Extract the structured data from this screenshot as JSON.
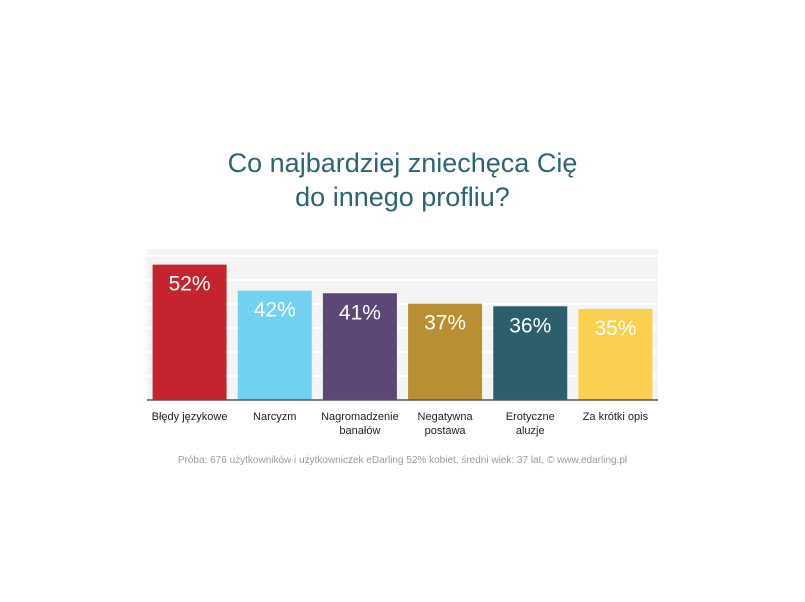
{
  "chart_data": {
    "type": "bar",
    "title_lines": [
      "Co najbardziej zniechęca Cię",
      "do innego profliu?"
    ],
    "categories": [
      [
        "Błędy językowe"
      ],
      [
        "Narcyzm"
      ],
      [
        "Nagromadzenie",
        "banałów"
      ],
      [
        "Negatywna",
        "postawa"
      ],
      [
        "Erotyczne",
        "aluzje"
      ],
      [
        "Za krótki opis"
      ]
    ],
    "values": [
      52,
      42,
      41,
      37,
      36,
      35
    ],
    "value_labels": [
      "52%",
      "42%",
      "41%",
      "37%",
      "36%",
      "35%"
    ],
    "colors": [
      "#c3242e",
      "#72d0f1",
      "#5c4775",
      "#b88f32",
      "#2d5e6c",
      "#f9d04f"
    ],
    "ylim": [
      0,
      58
    ],
    "grid": true,
    "legend": "none"
  },
  "footnote": "Próba: 676 użytkowników i użytkowniczek eDarling 52% kobiet, średni wiek: 37 lat, © www.edarling.pl"
}
